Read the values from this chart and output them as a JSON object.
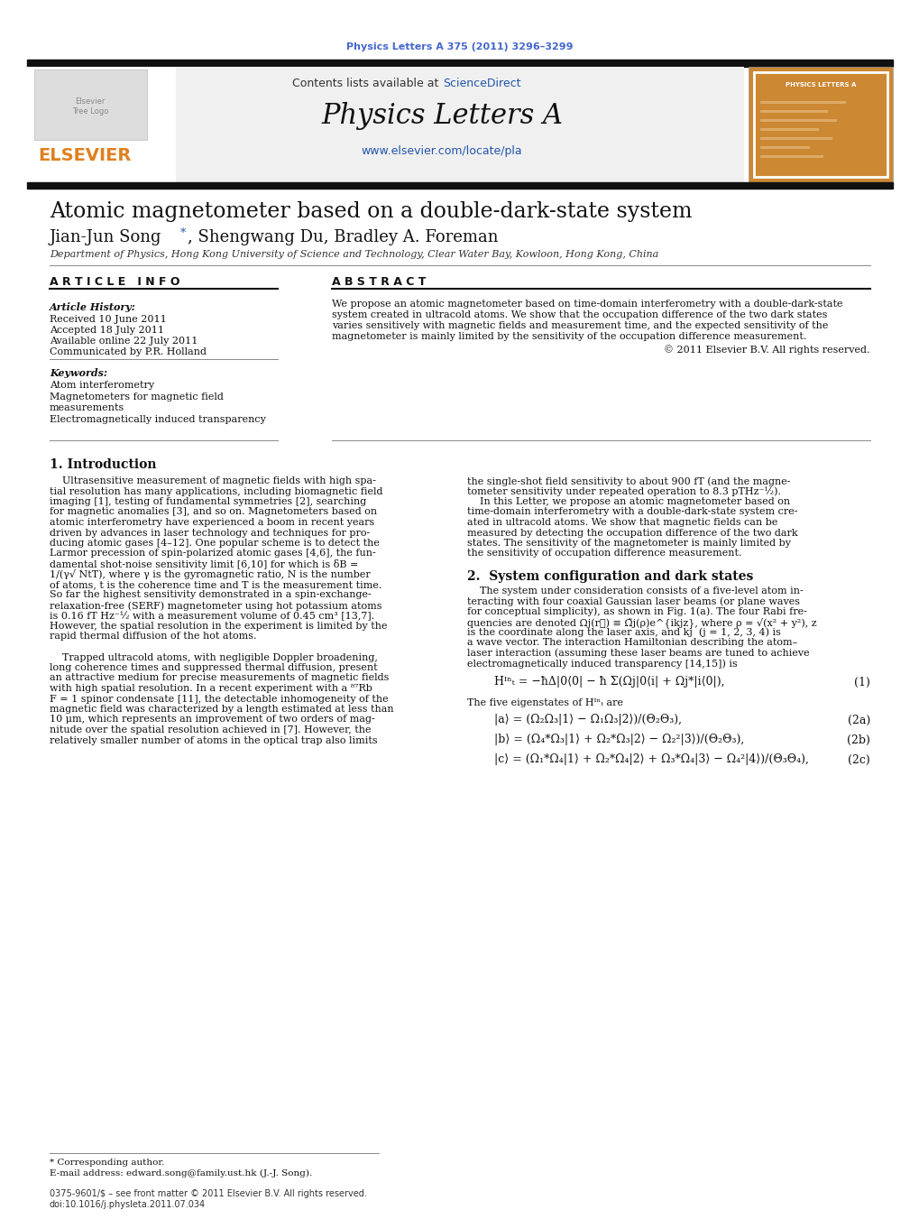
{
  "journal_line": "Physics Letters A 375 (2011) 3296–3299",
  "contents_line": "Contents lists available at ScienceDirect",
  "sciencedirect_color": "#4477aa",
  "journal_name": "Physics Letters A",
  "journal_url": "www.elsevier.com/locate/pla",
  "title": "Atomic magnetometer based on a double-dark-state system",
  "authors_part1": "Jian-Jun Song",
  "authors_part2": ", Shengwang Du, Bradley A. Foreman",
  "affiliation": "Department of Physics, Hong Kong University of Science and Technology, Clear Water Bay, Kowloon, Hong Kong, China",
  "article_info_header": "A R T I C L E   I N F O",
  "abstract_header": "A B S T R A C T",
  "article_history_label": "Article History:",
  "received": "Received 10 June 2011",
  "accepted": "Accepted 18 July 2011",
  "available": "Available online 22 July 2011",
  "communicated": "Communicated by P.R. Holland",
  "keywords_label": "Keywords:",
  "keywords": [
    "Atom interferometry",
    "Magnetometers for magnetic field\nmeasurements",
    "Electromagnetically induced transparency"
  ],
  "section1_header": "1. Introduction",
  "section2_header": "2.  System configuration and dark states",
  "bg_color": "#ffffff",
  "text_color": "#000000",
  "blue_color": "#2255aa",
  "header_bg": "#f0f0f0",
  "elsevier_orange": "#e08020",
  "thick_bar_color": "#111111",
  "journal_ref_color": "#4466cc"
}
